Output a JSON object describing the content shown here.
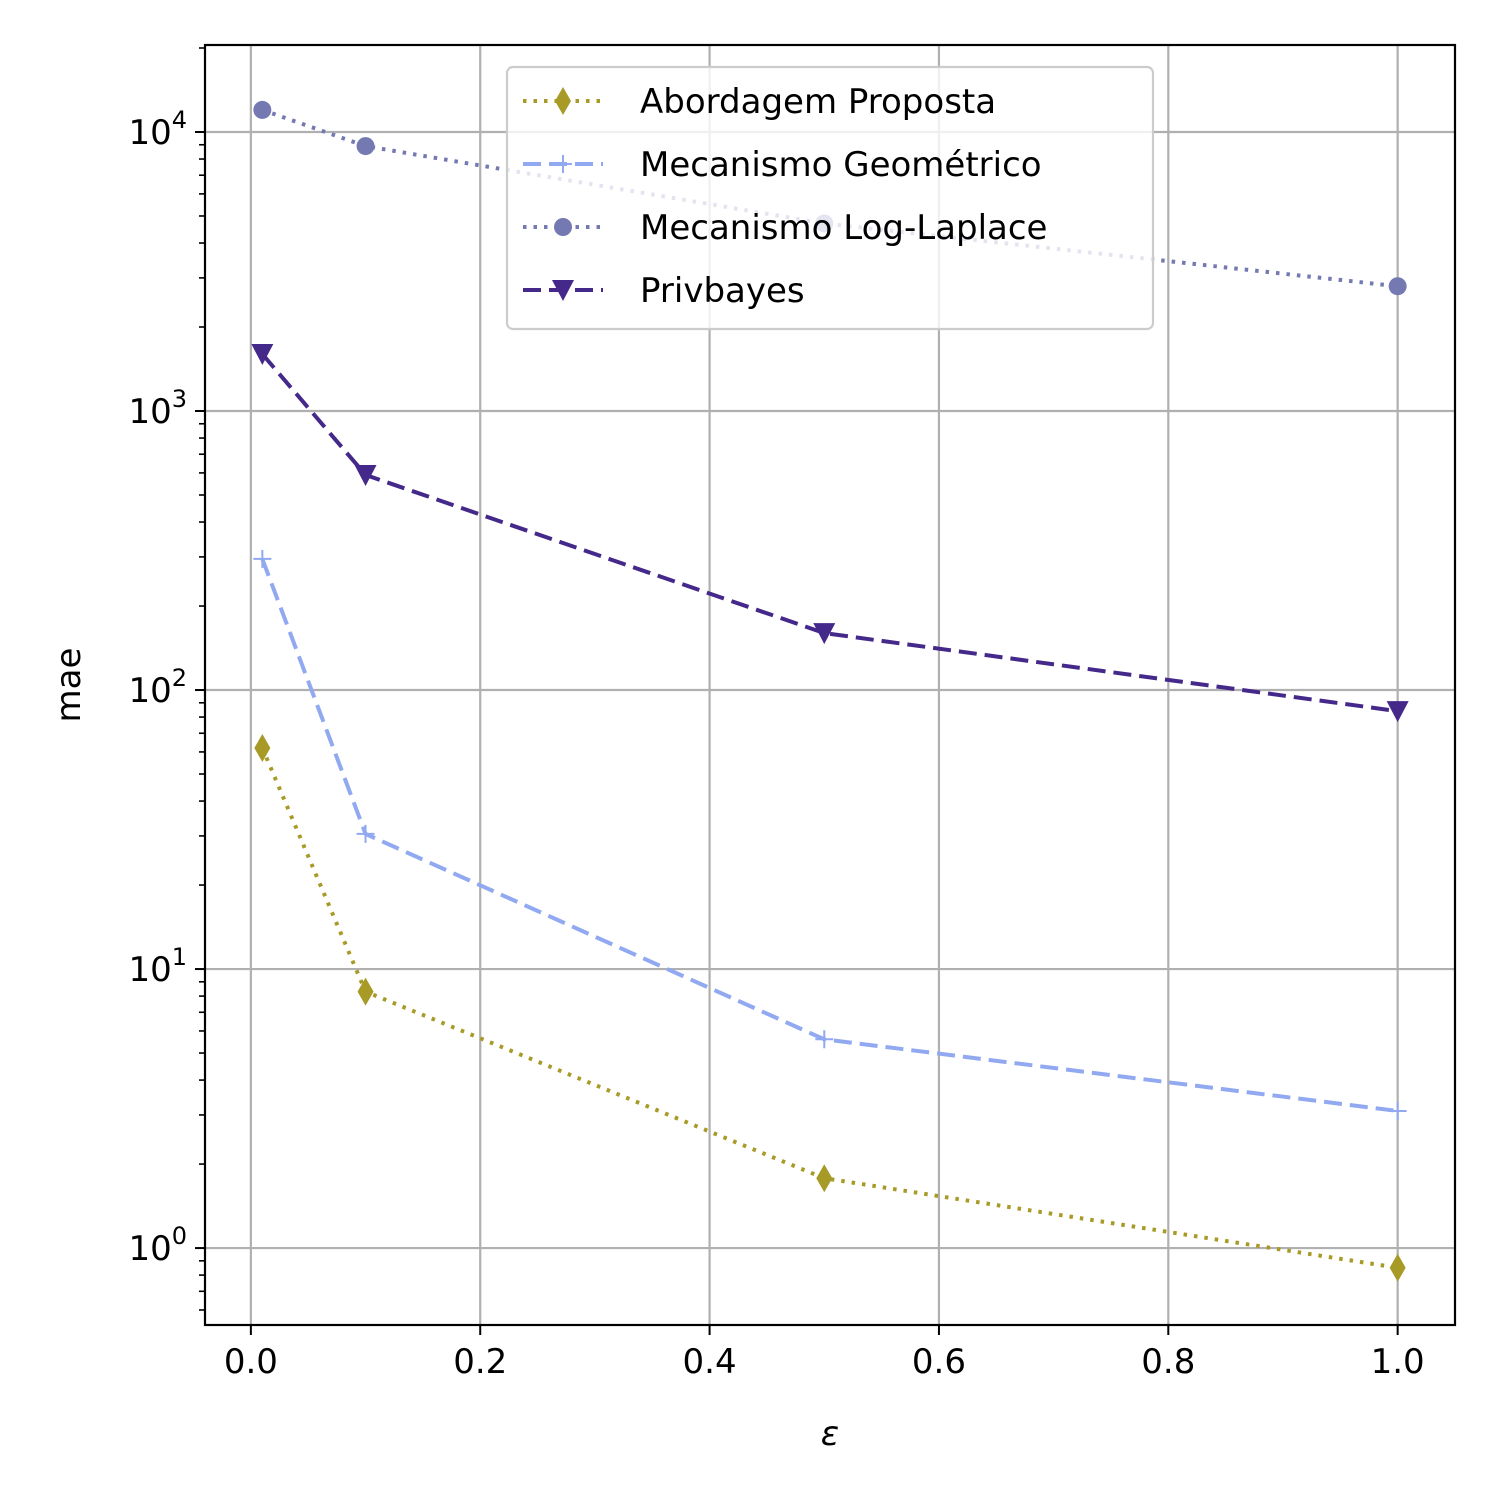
{
  "chart_data": {
    "type": "line",
    "xlabel": "ε",
    "ylabel": "mae",
    "x_scale": "linear",
    "y_scale": "log",
    "xlim": [
      -0.04,
      1.05
    ],
    "ylim": [
      0.53,
      20500
    ],
    "x_ticks": [
      {
        "value": 0.0,
        "label": "0.0"
      },
      {
        "value": 0.2,
        "label": "0.2"
      },
      {
        "value": 0.4,
        "label": "0.4"
      },
      {
        "value": 0.6,
        "label": "0.6"
      },
      {
        "value": 0.8,
        "label": "0.8"
      },
      {
        "value": 1.0,
        "label": "1.0"
      }
    ],
    "y_ticks": [
      {
        "value": 1,
        "base": "10",
        "exp": "0"
      },
      {
        "value": 10,
        "base": "10",
        "exp": "1"
      },
      {
        "value": 100,
        "base": "10",
        "exp": "2"
      },
      {
        "value": 1000,
        "base": "10",
        "exp": "3"
      },
      {
        "value": 10000,
        "base": "10",
        "exp": "4"
      }
    ],
    "grid": true,
    "legend_position": "top-center",
    "x": [
      0.01,
      0.1,
      0.5,
      1.0
    ],
    "series": [
      {
        "name": "Abordagem Proposta",
        "values": [
          62,
          8.3,
          1.78,
          0.85
        ],
        "color": "#a89a26",
        "linestyle": "dotted",
        "marker": "thin-diamond"
      },
      {
        "name": "Mecanismo Geométrico",
        "values": [
          295,
          30.5,
          5.6,
          3.1
        ],
        "color": "#91a9f0",
        "linestyle": "dashed",
        "marker": "plus"
      },
      {
        "name": "Mecanismo Log-Laplace",
        "values": [
          12000,
          8900,
          4700,
          2800
        ],
        "color": "#7479b2",
        "linestyle": "dotted",
        "marker": "circle"
      },
      {
        "name": "Privbayes",
        "values": [
          1600,
          590,
          160,
          84
        ],
        "color": "#44288a",
        "linestyle": "dashed",
        "marker": "triangle-down"
      }
    ]
  }
}
